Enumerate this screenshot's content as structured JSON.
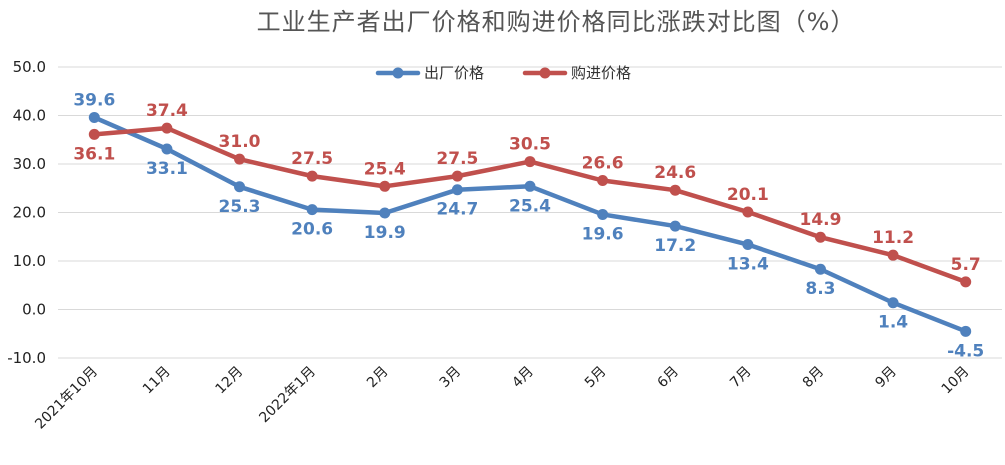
{
  "chart_data": {
    "type": "line",
    "title": "工业生产者出厂价格和购进价格同比涨跌对比图（%）",
    "categories": [
      "2021年10月",
      "11月",
      "12月",
      "2022年1月",
      "2月",
      "3月",
      "4月",
      "5月",
      "6月",
      "7月",
      "8月",
      "9月",
      "10月"
    ],
    "ylim": [
      -10,
      50
    ],
    "yticks": [
      "-10.0",
      "0.0",
      "10.0",
      "20.0",
      "30.0",
      "40.0",
      "50.0"
    ],
    "grid": true,
    "legend_position": "top",
    "series": [
      {
        "name": "出厂价格",
        "color": "#4f81bd",
        "values": [
          39.6,
          33.1,
          25.3,
          20.6,
          19.9,
          24.7,
          25.4,
          19.6,
          17.2,
          13.4,
          8.3,
          1.4,
          -4.5
        ],
        "labels": [
          "39.6",
          "33.1",
          "25.3",
          "20.6",
          "19.9",
          "24.7",
          "25.4",
          "19.6",
          "17.2",
          "13.4",
          "8.3",
          "1.4",
          "-4.5"
        ]
      },
      {
        "name": "购进价格",
        "color": "#c0504d",
        "values": [
          36.1,
          37.4,
          31.0,
          27.5,
          25.4,
          27.5,
          30.5,
          26.6,
          24.6,
          20.1,
          14.9,
          11.2,
          5.7
        ],
        "labels": [
          "36.1",
          "37.4",
          "31.0",
          "27.5",
          "25.4",
          "27.5",
          "30.5",
          "26.6",
          "24.6",
          "20.1",
          "14.9",
          "11.2",
          "5.7"
        ]
      }
    ]
  }
}
